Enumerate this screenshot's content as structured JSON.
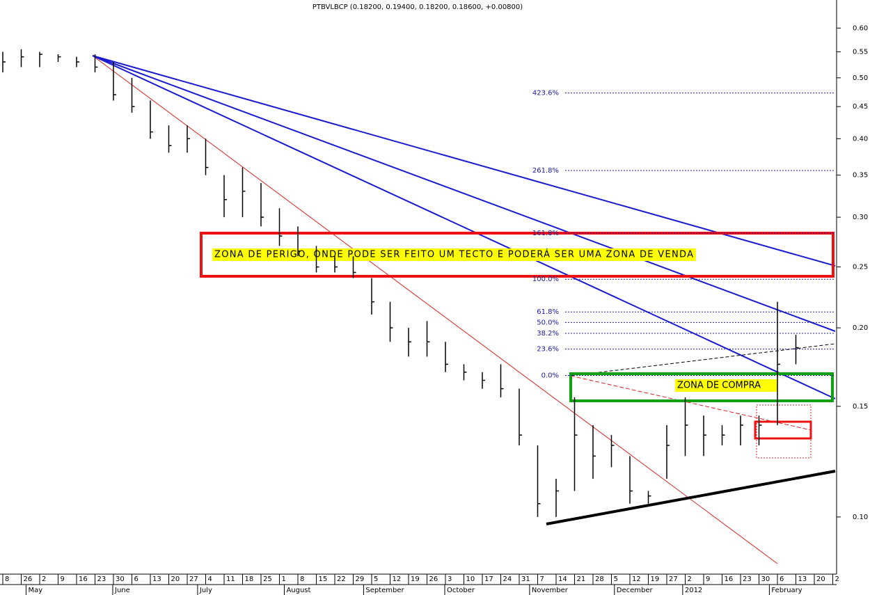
{
  "chart_data": {
    "type": "ohlc",
    "title": "PTBVLBCP (0.18200, 0.19400, 0.18200, 0.18600, +0.00800)",
    "log_scale": true,
    "categories": [
      "8",
      "26",
      "2",
      "9",
      "16",
      "23",
      "30",
      "6",
      "13",
      "20",
      "27",
      "4",
      "11",
      "18",
      "25",
      "1",
      "8",
      "15",
      "22",
      "29",
      "5",
      "12",
      "19",
      "26",
      "3",
      "10",
      "17",
      "24",
      "31",
      "7",
      "14",
      "21",
      "28",
      "5",
      "12",
      "19",
      "27",
      "2",
      "9",
      "16",
      "23",
      "30",
      "6",
      "13",
      "20",
      "2"
    ],
    "months": [
      "May",
      "June",
      "July",
      "August",
      "September",
      "October",
      "November",
      "December",
      "2012",
      "February"
    ],
    "high": [
      0.55,
      0.555,
      0.55,
      0.545,
      0.54,
      0.545,
      0.53,
      0.5,
      0.46,
      0.42,
      0.42,
      0.4,
      0.35,
      0.36,
      0.34,
      0.31,
      0.29,
      0.27,
      0.26,
      0.26,
      0.24,
      0.22,
      0.2,
      0.205,
      0.19,
      0.175,
      0.17,
      0.175,
      0.16,
      0.13,
      0.115,
      0.155,
      0.14,
      0.135,
      0.125,
      0.11,
      0.14,
      0.155,
      0.145,
      0.14,
      0.145,
      0.145,
      0.22,
      0.195,
      null,
      null
    ],
    "low": [
      0.51,
      0.52,
      0.52,
      0.53,
      0.52,
      0.51,
      0.46,
      0.44,
      0.4,
      0.38,
      0.38,
      0.35,
      0.3,
      0.3,
      0.29,
      0.27,
      0.26,
      0.245,
      0.245,
      0.24,
      0.21,
      0.19,
      0.18,
      0.18,
      0.17,
      0.165,
      0.16,
      0.155,
      0.13,
      0.1,
      0.1,
      0.11,
      0.115,
      0.12,
      0.105,
      0.105,
      0.115,
      0.125,
      0.125,
      0.13,
      0.13,
      0.13,
      0.14,
      0.175,
      null,
      null
    ],
    "close": [
      0.53,
      0.54,
      0.545,
      0.54,
      0.53,
      0.52,
      0.47,
      0.45,
      0.41,
      0.39,
      0.4,
      0.36,
      0.32,
      0.33,
      0.3,
      0.28,
      0.265,
      0.25,
      0.25,
      0.245,
      0.22,
      0.2,
      0.19,
      0.19,
      0.175,
      0.17,
      0.165,
      0.16,
      0.135,
      0.105,
      0.11,
      0.135,
      0.125,
      0.13,
      0.11,
      0.108,
      0.13,
      0.14,
      0.135,
      0.135,
      0.14,
      0.14,
      0.175,
      0.186,
      null,
      null
    ],
    "color": "#000000",
    "ylim": [
      0.0811,
      0.665
    ],
    "yticks": [
      {
        "value": 0.1,
        "label": "0.10"
      },
      0.15,
      {
        "value": 0.2,
        "label": "0.20"
      },
      0.25,
      {
        "value": 0.3,
        "label": "0.30"
      },
      0.35,
      {
        "value": 0.4,
        "label": "0.40"
      },
      0.45,
      {
        "value": 0.5,
        "label": "0.50"
      },
      0.55,
      {
        "value": 0.6,
        "label": "0.60"
      }
    ],
    "fib_levels": [
      {
        "label": "423.6%",
        "price": 0.473
      },
      {
        "label": "261.8%",
        "price": 0.356
      },
      {
        "label": "161.8%",
        "price": 0.283
      },
      {
        "label": "100.0%",
        "price": 0.239
      },
      {
        "label": "61.8%",
        "price": 0.212
      },
      {
        "label": "50.0%",
        "price": 0.204
      },
      {
        "label": "38.2%",
        "price": 0.196
      },
      {
        "label": "23.6%",
        "price": 0.185
      },
      {
        "label": "0.0%",
        "price": 0.168
      }
    ],
    "annotations": [
      "ZONA DE PERIGO, ONDE PODE SER FEITO UM TECTO E PODERÁ SER UMA ZONA DE VENDA",
      "ZONA DE COMPRA"
    ]
  }
}
